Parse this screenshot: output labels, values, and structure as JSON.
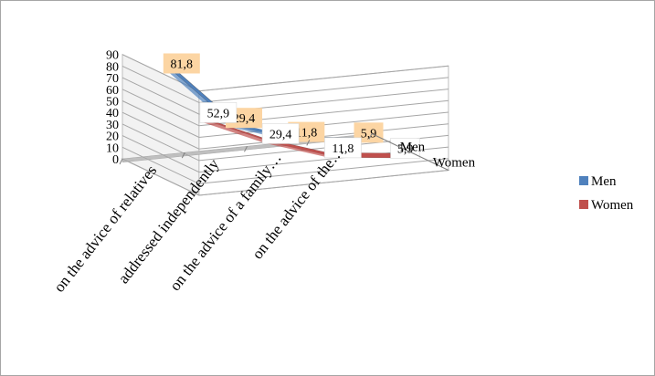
{
  "chart_data": {
    "type": "line",
    "style": "3d-ribbon",
    "categories": [
      "on the advice of relatives",
      "addressed independently",
      "on the advice of a family…",
      "on the advice of the…"
    ],
    "series": [
      {
        "name": "Men",
        "values": [
          81.8,
          29.4,
          11.8,
          5.9
        ],
        "labels": [
          "81,8",
          "29,4",
          "11,8",
          "5,9"
        ],
        "color": "#4f81bd",
        "label_bg": "#fcd5a3"
      },
      {
        "name": "Women",
        "values": [
          52.9,
          29.4,
          11.8,
          5.9
        ],
        "labels": [
          "52,9",
          "29,4",
          "11,8",
          "5,9"
        ],
        "color": "#c0504d",
        "label_bg": "#ffffff"
      }
    ],
    "depth_axis_labels": [
      "Women",
      "Men"
    ],
    "y_ticks": [
      "0",
      "10",
      "20",
      "30",
      "40",
      "50",
      "60",
      "70",
      "80",
      "90"
    ],
    "ylim": [
      0,
      90
    ],
    "grid": true,
    "legend_position": "right"
  }
}
